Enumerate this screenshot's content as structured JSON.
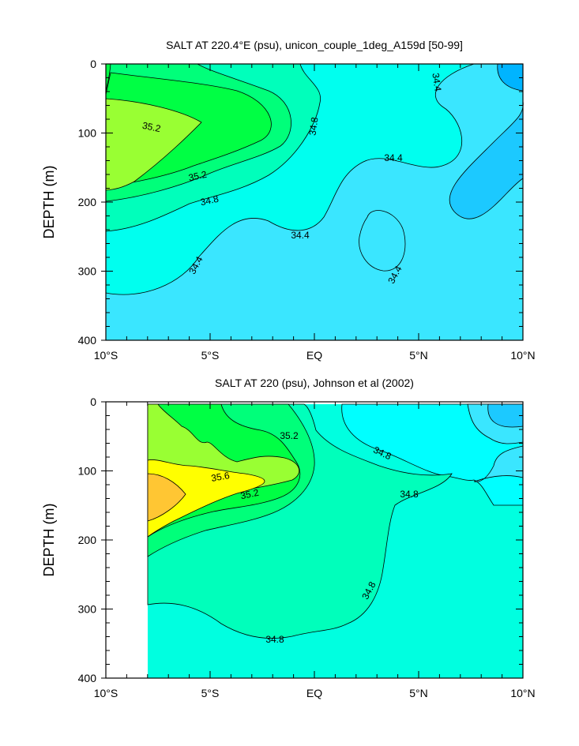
{
  "chart_data": [
    {
      "type": "contour",
      "title": "SALT AT 220.4°E (psu), unicon_couple_1deg_A159d [50-99]",
      "ylabel": "DEPTH (m)",
      "xlabel": "",
      "x_tick_labels": [
        "10°S",
        "5°S",
        "EQ",
        "5°N",
        "10°N"
      ],
      "x_ticks": [
        -10,
        -5,
        0,
        5,
        10
      ],
      "xlim": [
        -10,
        10
      ],
      "y_tick_labels": [
        "0",
        "100",
        "200",
        "300",
        "400"
      ],
      "y_ticks": [
        0,
        100,
        200,
        300,
        400
      ],
      "ylim": [
        0,
        400
      ],
      "y_inverted": true,
      "contour_interval": 0.2,
      "contour_labels": [
        {
          "text": "35.2",
          "lat": -8.8,
          "depth": 92
        },
        {
          "text": "35.2",
          "lat": -4.4,
          "depth": 160
        },
        {
          "text": "34.8",
          "lat": -5.1,
          "depth": 196
        },
        {
          "text": "34.8",
          "lat": -0.2,
          "depth": 92
        },
        {
          "text": "34.4",
          "lat": -3.4,
          "depth": 303
        },
        {
          "text": "34.4",
          "lat": -0.8,
          "depth": 251
        },
        {
          "text": "34.4",
          "lat": 3.7,
          "depth": 139
        },
        {
          "text": "34.4",
          "lat": 6.1,
          "depth": 30
        },
        {
          "text": "34.4",
          "lat": 3.8,
          "depth": 303
        }
      ]
    },
    {
      "type": "contour",
      "title": "SALT AT 220 (psu), Johnson et al (2002)",
      "ylabel": "DEPTH (m)",
      "xlabel": "",
      "x_tick_labels": [
        "10°S",
        "5°S",
        "EQ",
        "5°N",
        "10°N"
      ],
      "x_ticks": [
        -10,
        -5,
        0,
        5,
        10
      ],
      "xlim": [
        -10,
        10
      ],
      "y_tick_labels": [
        "0",
        "100",
        "200",
        "300",
        "400"
      ],
      "y_ticks": [
        0,
        100,
        200,
        300,
        400
      ],
      "ylim": [
        0,
        400
      ],
      "y_inverted": true,
      "data_lat_start": -8,
      "contour_interval": 0.2,
      "contour_labels": [
        {
          "text": "35.2",
          "lat": -1.3,
          "depth": 40
        },
        {
          "text": "35.6",
          "lat": -4.6,
          "depth": 108
        },
        {
          "text": "35.2",
          "lat": -3.8,
          "depth": 132
        },
        {
          "text": "34.8",
          "lat": 3.0,
          "depth": 74
        },
        {
          "text": "34.8",
          "lat": 4.6,
          "depth": 135
        },
        {
          "text": "34.8",
          "lat": 2.6,
          "depth": 280
        },
        {
          "text": "34.8",
          "lat": -2.2,
          "depth": 343
        }
      ]
    }
  ]
}
